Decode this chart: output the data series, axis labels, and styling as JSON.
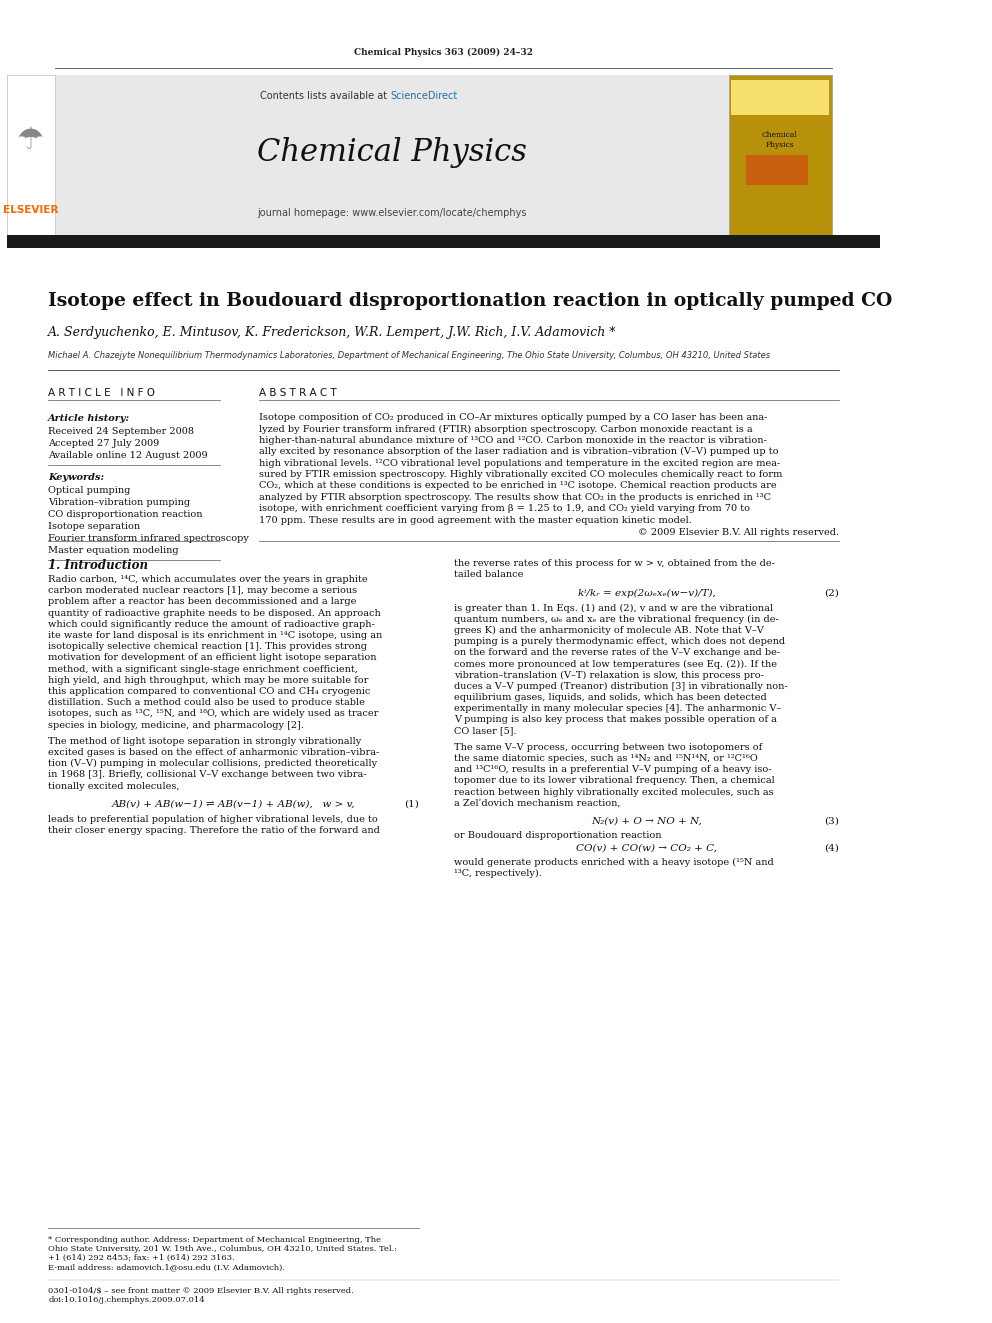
{
  "page_width": 9.92,
  "page_height": 13.23,
  "background_color": "#ffffff",
  "journal_ref": "Chemical Physics 363 (2009) 24–32",
  "contents_text": "Contents lists available at",
  "sciencedirect_text": "ScienceDirect",
  "sciencedirect_color": "#1a6faf",
  "journal_name": "Chemical Physics",
  "journal_homepage": "journal homepage: www.elsevier.com/locate/chemphys",
  "header_bg": "#e8e8e8",
  "thick_bar_color": "#1a1a1a",
  "title": "Isotope effect in Boudouard disproportionation reaction in optically pumped CO",
  "authors": "A. Serdyuchenko, E. Mintusov, K. Frederickson, W.R. Lempert, J.W. Rich, I.V. Adamovich *",
  "affiliation": "Michael A. Chazejyte Nonequilibrium Thermodynamics Laboratories, Department of Mechanical Engineering, The Ohio State University, Columbus, OH 43210, United States",
  "article_info_header": "A R T I C L E   I N F O",
  "abstract_header": "A B S T R A C T",
  "article_history_label": "Article history:",
  "received": "Received 24 September 2008",
  "accepted": "Accepted 27 July 2009",
  "available": "Available online 12 August 2009",
  "keywords_label": "Keywords:",
  "keywords": [
    "Optical pumping",
    "Vibration–vibration pumping",
    "CO disproportionation reaction",
    "Isotope separation",
    "Fourier transform infrared spectroscopy",
    "Master equation modeling"
  ],
  "copyright": "© 2009 Elsevier B.V. All rights reserved.",
  "intro_header": "1. Introduction",
  "email_text": "E-mail address: adamovich.1@osu.edu (I.V. Adamovich).",
  "issn_text": "0301-0104/$ – see front matter © 2009 Elsevier B.V. All rights reserved.",
  "doi_text": "doi:10.1016/j.chemphys.2009.07.014",
  "elsevier_color": "#ff6600",
  "abstract_lines": [
    "Isotope composition of CO₂ produced in CO–Ar mixtures optically pumped by a CO laser has been ana-",
    "lyzed by Fourier transform infrared (FTIR) absorption spectroscopy. Carbon monoxide reactant is a",
    "higher-than-natural abundance mixture of ¹³CO and ¹²CO. Carbon monoxide in the reactor is vibration-",
    "ally excited by resonance absorption of the laser radiation and is vibration–vibration (V–V) pumped up to",
    "high vibrational levels. ¹²CO vibrational level populations and temperature in the excited region are mea-",
    "sured by FTIR emission spectroscopy. Highly vibrationally excited CO molecules chemically react to form",
    "CO₂, which at these conditions is expected to be enriched in ¹³C isotope. Chemical reaction products are",
    "analyzed by FTIR absorption spectroscopy. The results show that CO₂ in the products is enriched in ¹³C",
    "isotope, with enrichment coefficient varying from β = 1.25 to 1.9, and CO₂ yield varying from 70 to",
    "170 ppm. These results are in good agreement with the master equation kinetic model."
  ],
  "intro_lines1": [
    "Radio carbon, ¹⁴C, which accumulates over the years in graphite",
    "carbon moderated nuclear reactors [1], may become a serious",
    "problem after a reactor has been decommissioned and a large",
    "quantity of radioactive graphite needs to be disposed. An approach",
    "which could significantly reduce the amount of radioactive graph-",
    "ite waste for land disposal is its enrichment in ¹⁴C isotope, using an",
    "isotopically selective chemical reaction [1]. This provides strong",
    "motivation for development of an efficient light isotope separation",
    "method, with a significant single-stage enrichment coefficient,",
    "high yield, and high throughput, which may be more suitable for",
    "this application compared to conventional CO and CH₄ cryogenic",
    "distillation. Such a method could also be used to produce stable",
    "isotopes, such as ¹³C, ¹⁵N, and ¹⁸O, which are widely used as tracer",
    "species in biology, medicine, and pharmacology [2]."
  ],
  "intro_lines2": [
    "The method of light isotope separation in strongly vibrationally",
    "excited gases is based on the effect of anharmonic vibration–vibra-",
    "tion (V–V) pumping in molecular collisions, predicted theoretically",
    "in 1968 [3]. Briefly, collisional V–V exchange between two vibra-",
    "tionally excited molecules,"
  ],
  "eq1_text": "AB(v) + AB(w−1) ⇌ AB(v−1) + AB(w),   w > v,",
  "eq1_num": "(1)",
  "eq1_after": [
    "leads to preferential population of higher vibrational levels, due to",
    "their closer energy spacing. Therefore the ratio of the forward and"
  ],
  "right_lines1": [
    "the reverse rates of this process for w > v, obtained from the de-",
    "tailed balance"
  ],
  "eq2_text": "kⁱ/kᵣ = exp(2ωₑxₑ(w−v)/T),",
  "eq2_num": "(2)",
  "right_lines2": [
    "is greater than 1. In Eqs. (1) and (2), v and w are the vibrational",
    "quantum numbers, ωₑ and xₑ are the vibrational frequency (in de-",
    "grees K) and the anharmonicity of molecule AB. Note that V–V",
    "pumping is a purely thermodynamic effect, which does not depend",
    "on the forward and the reverse rates of the V–V exchange and be-",
    "comes more pronounced at low temperatures (see Eq. (2)). If the",
    "vibration–translation (V–T) relaxation is slow, this process pro-",
    "duces a V–V pumped (Treanor) distribution [3] in vibrationally non-",
    "equilibrium gases, liquids, and solids, which has been detected",
    "experimentally in many molecular species [4]. The anharmonic V–",
    "V pumping is also key process that makes possible operation of a",
    "CO laser [5]."
  ],
  "right_lines3": [
    "The same V–V process, occurring between two isotopomers of",
    "the same diatomic species, such as ¹⁴N₂ and ¹⁵N¹⁴N, or ¹²C¹⁶O",
    "and ¹³C¹⁶O, results in a preferential V–V pumping of a heavy iso-",
    "topomer due to its lower vibrational frequency. Then, a chemical",
    "reaction between highly vibrationally excited molecules, such as",
    "a Zelʹdovich mechanism reaction,"
  ],
  "eq3_text": "N₂(v) + O → NO + N,",
  "eq3_num": "(3)",
  "eq3_comment": "or Boudouard disproportionation reaction",
  "eq4_text": "CO(v) + CO(w) → CO₂ + C,",
  "eq4_num": "(4)",
  "right_lines4": [
    "would generate products enriched with a heavy isotope (¹⁵N and",
    "¹³C, respectively)."
  ],
  "footnote_lines": [
    "* Corresponding author. Address: Department of Mechanical Engineering, The",
    "Ohio State University, 201 W. 19th Ave., Columbus, OH 43210, United States. Tel.:",
    "+1 (614) 292 8453; fax: +1 (614) 292 3163."
  ]
}
